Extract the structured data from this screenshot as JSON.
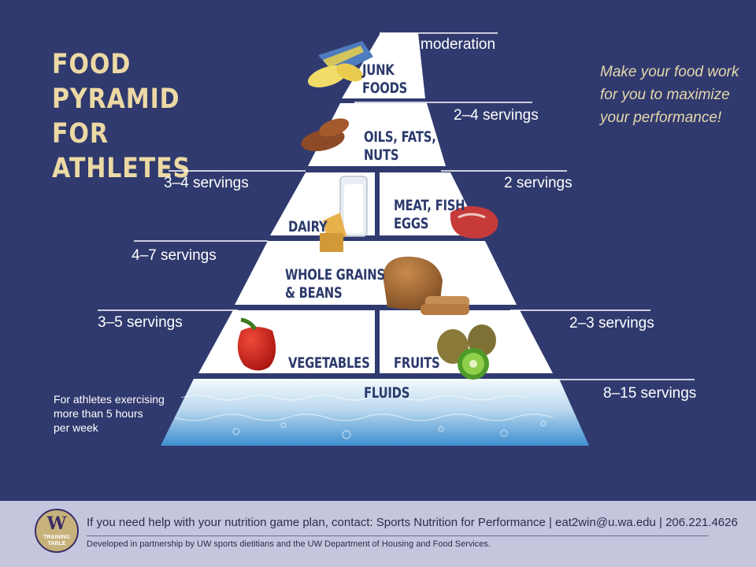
{
  "title": {
    "line1": "FOOD PYRAMID",
    "line2": "FOR ATHLETES"
  },
  "tagline": [
    "Make your food work",
    "for you to maximize",
    "your performance!"
  ],
  "tiers": {
    "junk": {
      "lines": [
        "JUNK",
        "FOODS"
      ],
      "serving": "moderation"
    },
    "oils": {
      "lines": [
        "OILS, FATS,",
        "NUTS"
      ],
      "serving": "2–4 servings"
    },
    "dairy": {
      "label": "DAIRY",
      "serving": "3–4 servings"
    },
    "meat": {
      "lines": [
        "MEAT, FISH",
        "EGGS"
      ],
      "serving": "2 servings"
    },
    "grains": {
      "lines": [
        "WHOLE GRAINS",
        "& BEANS"
      ],
      "serving": "4–7 servings"
    },
    "vegetables": {
      "label": "VEGETABLES",
      "serving": "3–5 servings"
    },
    "fruits": {
      "label": "FRUITS",
      "serving": "2–3 servings"
    },
    "fluids": {
      "label": "FLUIDS",
      "serving": "8–15 servings"
    }
  },
  "fluids_note": [
    "For athletes exercising",
    "more than 5 hours",
    "per week"
  ],
  "icons": {
    "chips": "chips-icon",
    "almonds": "almonds-icon",
    "milk": "milk-glass-icon",
    "cheese": "cheese-icon",
    "steak": "steak-icon",
    "bread": "bread-icon",
    "pepper": "bell-pepper-icon",
    "kiwi": "kiwi-icon",
    "water": "water-icon"
  },
  "footer": {
    "logo": {
      "mark": "W",
      "line1": "TRAINING",
      "line2": "TABLE"
    },
    "contact": "If you need help with your nutrition game plan, contact: Sports Nutrition for Performance | eat2win@u.wa.edu | 206.221.4626",
    "credit": "Developed in partnership by UW sports dietitians and the UW Department of Housing and Food Services."
  },
  "colors": {
    "background": "#303a6e",
    "title": "#ecd9a4",
    "tier_fill": "#ffffff",
    "tier_text": "#2c3a6c",
    "footer_band": "#c4c6de"
  }
}
